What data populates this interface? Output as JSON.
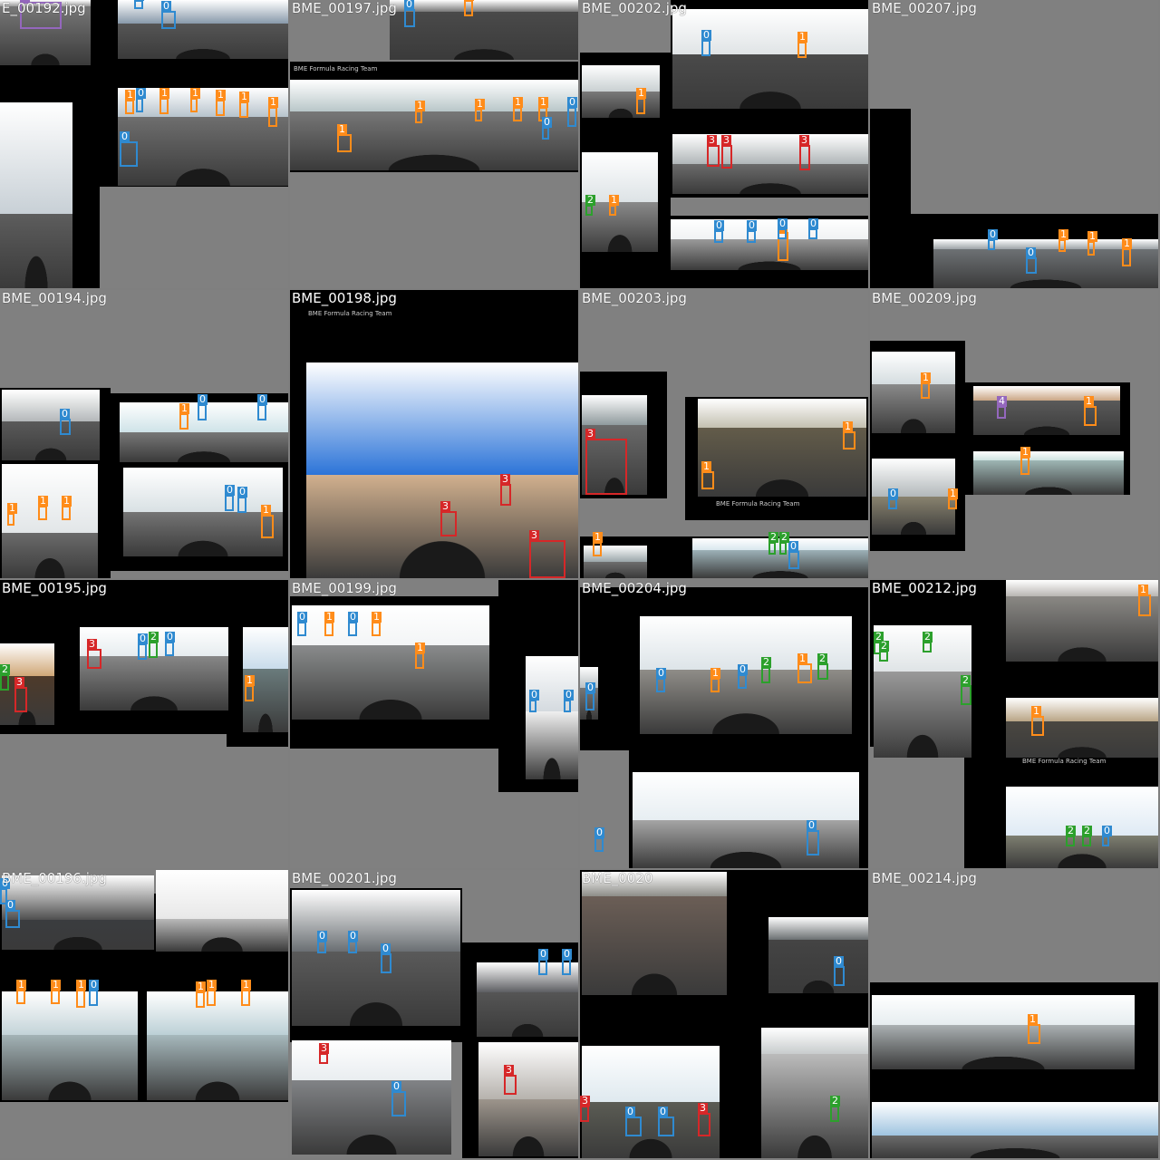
{
  "class_colors": {
    "0": "#2f8ad0",
    "1": "#ff8c1a",
    "2": "#2ca02c",
    "3": "#d62728",
    "4": "#9467bd"
  },
  "caption_text": "BME Formula Racing Team",
  "tiles": [
    {
      "title": "E_00192.jpg",
      "c": 0,
      "r": 0
    },
    {
      "title": "BME_00197.jpg",
      "c": 1,
      "r": 0
    },
    {
      "title": "BME_00202.jpg",
      "c": 2,
      "r": 0
    },
    {
      "title": "BME_00207.jpg",
      "c": 3,
      "r": 0
    },
    {
      "title": "BME_00194.jpg",
      "c": 0,
      "r": 1
    },
    {
      "title": "BME_00198.jpg",
      "c": 1,
      "r": 1
    },
    {
      "title": "BME_00203.jpg",
      "c": 2,
      "r": 1
    },
    {
      "title": "BME_00209.jpg",
      "c": 3,
      "r": 1
    },
    {
      "title": "BME_00195.jpg",
      "c": 0,
      "r": 2
    },
    {
      "title": "BME_00199.jpg",
      "c": 1,
      "r": 2
    },
    {
      "title": "BME_00204.jpg",
      "c": 2,
      "r": 2
    },
    {
      "title": "BME_00212.jpg",
      "c": 3,
      "r": 2
    },
    {
      "title": "BME_00196.jpg",
      "c": 0,
      "r": 3
    },
    {
      "title": "BME_00201.jpg",
      "c": 1,
      "r": 3
    },
    {
      "title": "BME_0020",
      "c": 2,
      "r": 3
    },
    {
      "title": "BME_00214.jpg",
      "c": 3,
      "r": 3
    }
  ]
}
